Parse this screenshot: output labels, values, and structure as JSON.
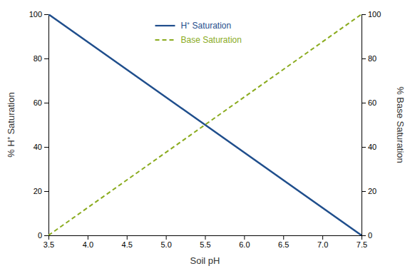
{
  "chart_data": {
    "type": "line",
    "x_label": "Soil pH",
    "y_label": "% H⁺ Saturation",
    "y2_label": "% Base Saturation",
    "x": [
      3.5,
      7.5
    ],
    "series": [
      {
        "name": "H⁺ Saturation",
        "color": "#1f4e8c",
        "line_style": "solid",
        "values": [
          100,
          0
        ]
      },
      {
        "name": "Base Saturation",
        "color": "#8aab1e",
        "line_style": "dashed",
        "axis": "y2",
        "values": [
          0,
          100
        ]
      }
    ],
    "xlim": [
      3.5,
      7.5
    ],
    "xticks": [
      3.5,
      {
        "value": 4.0,
        "label": "4.0"
      },
      4.5,
      {
        "value": 5.0,
        "label": "5.0"
      },
      5.5,
      {
        "value": 6.0,
        "label": "6.0"
      },
      6.5,
      {
        "value": 7.0,
        "label": "7.0"
      },
      7.5
    ],
    "ylim": [
      0,
      100
    ],
    "yticks": [
      0,
      20,
      40,
      60,
      80,
      100
    ],
    "y2lim": [
      0,
      100
    ],
    "y2ticks": [
      0,
      20,
      40,
      60,
      80,
      100
    ],
    "grid": false,
    "legend": "upper center"
  }
}
